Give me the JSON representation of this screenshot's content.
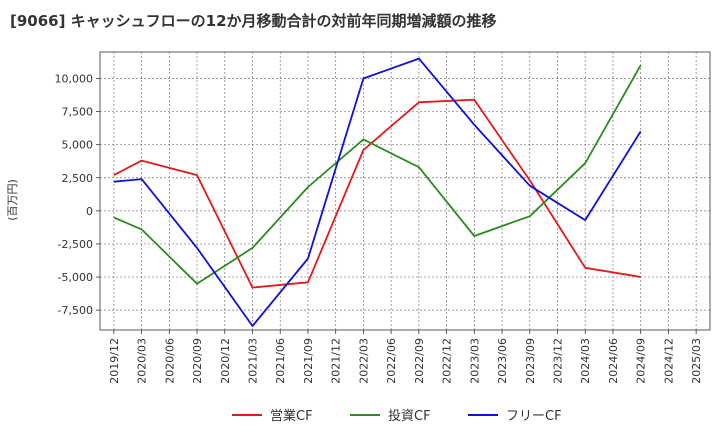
{
  "chart_data": {
    "type": "line",
    "title": "[9066]  キャッシュフローの12か月移動合計の対前年同期増減額の推移",
    "xlabel": "",
    "ylabel": "(百万円)",
    "x_ticks": [
      "2019/12",
      "2020/03",
      "2020/06",
      "2020/09",
      "2020/12",
      "2021/03",
      "2021/06",
      "2021/09",
      "2021/12",
      "2022/03",
      "2022/06",
      "2022/09",
      "2022/12",
      "2023/03",
      "2023/06",
      "2023/09",
      "2023/12",
      "2024/03",
      "2024/06",
      "2024/09",
      "2024/12",
      "2025/03"
    ],
    "y_ticks": [
      10000,
      7500,
      5000,
      2500,
      0,
      -2500,
      -5000,
      -7500
    ],
    "y_tick_labels": [
      "10,000",
      "7,500",
      "5,000",
      "2,500",
      "0",
      "-2,500",
      "-5,000",
      "-7,500"
    ],
    "ylim": [
      -9000,
      12000
    ],
    "grid": true,
    "legend_position": "bottom",
    "series": [
      {
        "name": "営業CF",
        "color": "#e31a1c",
        "x": [
          "2019/12",
          "2020/03",
          "2020/09",
          "2021/03",
          "2021/09",
          "2022/03",
          "2022/09",
          "2023/03",
          "2023/09",
          "2024/03",
          "2024/09"
        ],
        "values": [
          2700,
          3800,
          2700,
          -5800,
          -5400,
          4600,
          8200,
          8400,
          2300,
          -4300,
          -5000
        ]
      },
      {
        "name": "投資CF",
        "color": "#2e8b22",
        "x": [
          "2019/12",
          "2020/03",
          "2020/09",
          "2021/03",
          "2021/09",
          "2022/03",
          "2022/09",
          "2023/03",
          "2023/09",
          "2024/03",
          "2024/09"
        ],
        "values": [
          -500,
          -1400,
          -5500,
          -2800,
          1800,
          5400,
          3300,
          -1900,
          -400,
          3600,
          11000
        ]
      },
      {
        "name": "フリーCF",
        "color": "#1010d8",
        "x": [
          "2019/12",
          "2020/03",
          "2020/09",
          "2021/03",
          "2021/09",
          "2022/03",
          "2022/09",
          "2023/03",
          "2023/09",
          "2024/03",
          "2024/09"
        ],
        "values": [
          2200,
          2400,
          -2800,
          -8700,
          -3600,
          10000,
          11500,
          6500,
          1900,
          -700,
          6000
        ]
      }
    ]
  }
}
